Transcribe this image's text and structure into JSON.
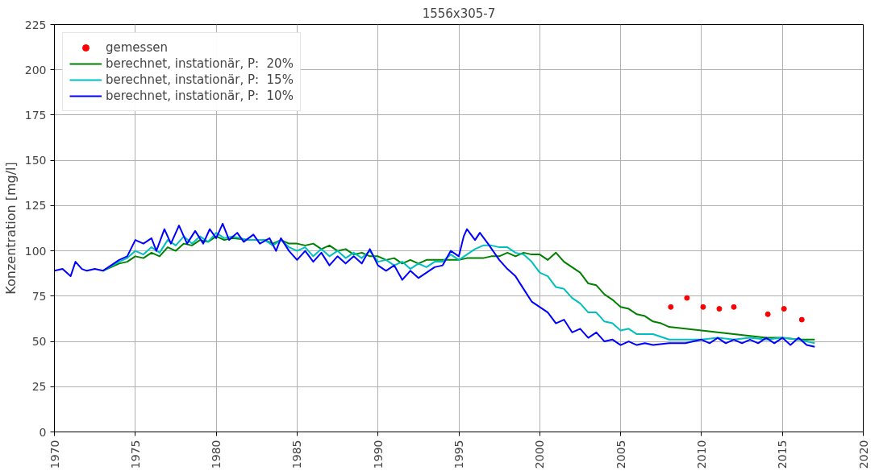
{
  "chart_data": {
    "type": "line",
    "title": "1556x305-7",
    "ylabel": "Konzentration [mg/l]",
    "xlim": [
      1970,
      2020
    ],
    "xticks": [
      1970,
      1975,
      1980,
      1985,
      1990,
      1995,
      2000,
      2005,
      2010,
      2015,
      2020
    ],
    "ylim": [
      0,
      225
    ],
    "yticks": [
      0,
      25,
      50,
      75,
      100,
      125,
      150,
      175,
      200,
      225
    ],
    "grid": true,
    "legend": "top left",
    "series": [
      {
        "name": "gemessen",
        "type": "scatter",
        "marker": "circle",
        "color": "#ff0000",
        "x": [
          2008.1,
          2009.1,
          2010.1,
          2011.1,
          2012.0,
          2014.1,
          2015.1,
          2016.2
        ],
        "values": [
          69,
          74,
          69,
          68,
          69,
          65,
          68,
          62
        ]
      },
      {
        "name": "berechnet, instationär, P:  20%",
        "color": "#008000",
        "x": [
          1973,
          1974,
          1974.5,
          1975,
          1975.5,
          1976,
          1976.5,
          1977,
          1977.5,
          1978,
          1978.5,
          1979,
          1979.5,
          1980,
          1980.5,
          1981,
          1982,
          1983,
          1983.5,
          1984,
          1984.5,
          1985,
          1985.5,
          1986,
          1986.5,
          1987,
          1987.5,
          1988,
          1988.5,
          1989,
          1989.5,
          1990,
          1990.5,
          1991,
          1991.5,
          1992,
          1992.5,
          1993,
          1993.5,
          1994,
          1994.5,
          1995,
          1995.5,
          1996,
          1996.5,
          1997,
          1997.5,
          1998,
          1998.5,
          1999,
          1999.5,
          2000,
          2000.5,
          2001,
          2001.5,
          2002,
          2002.5,
          2003,
          2003.5,
          2004,
          2004.5,
          2005,
          2005.5,
          2006,
          2006.5,
          2007,
          2007.5,
          2008,
          2009,
          2010,
          2011,
          2012,
          2013,
          2014,
          2015,
          2016,
          2017
        ],
        "values": [
          89,
          93,
          94,
          97,
          96,
          99,
          97,
          102,
          100,
          104,
          103,
          106,
          105,
          108,
          106,
          107,
          106,
          106,
          104,
          106,
          104,
          104,
          103,
          104,
          101,
          103,
          100,
          101,
          98,
          99,
          97,
          97,
          95,
          96,
          93,
          95,
          93,
          95,
          95,
          95,
          95,
          95,
          96,
          96,
          96,
          97,
          97,
          99,
          97,
          99,
          98,
          98,
          95,
          99,
          94,
          91,
          88,
          82,
          81,
          76,
          73,
          69,
          68,
          65,
          64,
          61,
          60,
          58,
          57,
          56,
          55,
          54,
          53,
          52,
          52,
          51,
          51
        ]
      },
      {
        "name": "berechnet, instationär, P:  15%",
        "color": "#00bfbf",
        "x": [
          1973,
          1974,
          1974.5,
          1975,
          1975.5,
          1976,
          1976.5,
          1977,
          1977.5,
          1978,
          1978.5,
          1979,
          1979.5,
          1980,
          1980.5,
          1981,
          1982,
          1983,
          1983.5,
          1984,
          1984.5,
          1985,
          1985.5,
          1986,
          1986.5,
          1987,
          1987.5,
          1988,
          1988.5,
          1989,
          1989.5,
          1990,
          1990.5,
          1991,
          1991.5,
          1992,
          1992.5,
          1993,
          1993.5,
          1994,
          1994.5,
          1995,
          1995.5,
          1996,
          1996.5,
          1997,
          1997.5,
          1998,
          1998.5,
          1999,
          1999.5,
          2000,
          2000.5,
          2001,
          2001.5,
          2002,
          2002.5,
          2003,
          2003.5,
          2004,
          2004.5,
          2005,
          2005.5,
          2006,
          2007,
          2008,
          2009,
          2010,
          2011,
          2012,
          2013,
          2014,
          2015,
          2016,
          2017
        ],
        "values": [
          89,
          94,
          96,
          100,
          98,
          102,
          99,
          106,
          103,
          108,
          104,
          108,
          105,
          110,
          107,
          108,
          106,
          106,
          103,
          106,
          102,
          100,
          102,
          97,
          101,
          97,
          100,
          96,
          99,
          96,
          100,
          94,
          95,
          92,
          94,
          90,
          93,
          91,
          94,
          94,
          98,
          95,
          98,
          101,
          103,
          103,
          102,
          102,
          99,
          98,
          94,
          88,
          86,
          80,
          79,
          74,
          71,
          66,
          66,
          61,
          60,
          56,
          57,
          54,
          54,
          51,
          51,
          51,
          52,
          51,
          52,
          51,
          52,
          51,
          49
        ]
      },
      {
        "name": "berechnet, instationär, P:  10%",
        "color": "#0000ff",
        "x": [
          1970,
          1970.5,
          1971,
          1971.3,
          1971.7,
          1972,
          1972.5,
          1973,
          1973.5,
          1974,
          1974.5,
          1975,
          1975.5,
          1976,
          1976.3,
          1976.8,
          1977.2,
          1977.7,
          1978.2,
          1978.7,
          1979.2,
          1979.6,
          1980,
          1980.4,
          1980.8,
          1981.3,
          1981.7,
          1982.3,
          1982.7,
          1983.3,
          1983.7,
          1984,
          1984.5,
          1985,
          1985.5,
          1986,
          1986.5,
          1987,
          1987.5,
          1988,
          1988.5,
          1989,
          1989.5,
          1990,
          1990.5,
          1991,
          1991.5,
          1992,
          1992.5,
          1993,
          1993.5,
          1994,
          1994.5,
          1995,
          1995.3,
          1995.5,
          1996,
          1996.3,
          1996.8,
          1997.5,
          1998,
          1998.5,
          1999,
          1999.5,
          2000,
          2000.5,
          2001,
          2001.5,
          2002,
          2002.5,
          2003,
          2003.5,
          2004,
          2004.5,
          2005,
          2005.5,
          2006,
          2006.5,
          2007,
          2008,
          2009,
          2010,
          2010.5,
          2011,
          2011.5,
          2012,
          2012.5,
          2013,
          2013.5,
          2014,
          2014.5,
          2015,
          2015.5,
          2016,
          2016.5,
          2017
        ],
        "values": [
          89,
          90,
          86,
          94,
          90,
          89,
          90,
          89,
          92,
          95,
          97,
          106,
          104,
          107,
          100,
          112,
          104,
          114,
          104,
          111,
          104,
          112,
          107,
          115,
          106,
          110,
          105,
          109,
          104,
          107,
          100,
          107,
          100,
          95,
          100,
          94,
          99,
          92,
          97,
          93,
          97,
          93,
          101,
          92,
          89,
          92,
          84,
          89,
          85,
          88,
          91,
          92,
          100,
          97,
          108,
          112,
          106,
          110,
          104,
          95,
          90,
          86,
          79,
          72,
          69,
          66,
          60,
          62,
          55,
          57,
          52,
          55,
          50,
          51,
          48,
          50,
          48,
          49,
          48,
          49,
          49,
          51,
          49,
          52,
          49,
          51,
          49,
          51,
          49,
          52,
          49,
          52,
          48,
          52,
          48,
          47
        ]
      }
    ]
  }
}
